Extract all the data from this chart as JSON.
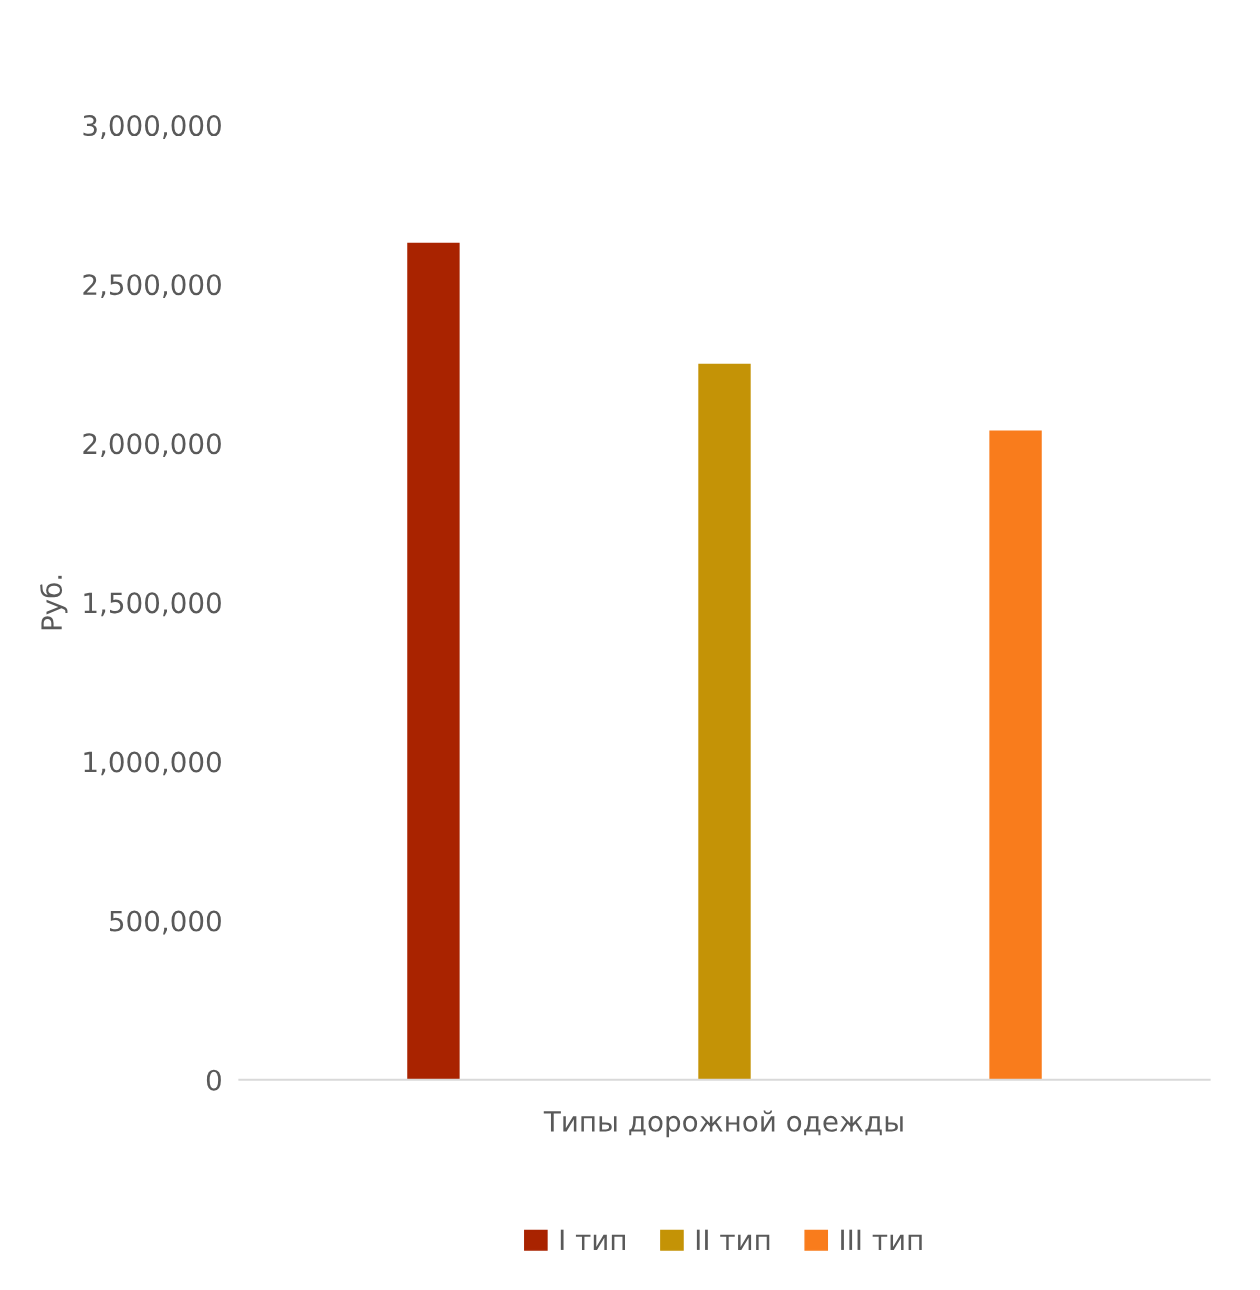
{
  "chart_data": {
    "type": "bar",
    "xlabel": "Типы дорожной одежды",
    "ylabel": "Руб.",
    "categories": [
      null
    ],
    "series": [
      {
        "name": "I тип",
        "color": "#a92300",
        "values": [
          2630000
        ]
      },
      {
        "name": "II тип",
        "color": "#c49306",
        "values": [
          2250000
        ]
      },
      {
        "name": "III тип",
        "color": "#f97c1c",
        "values": [
          2040000
        ]
      }
    ],
    "ylim": [
      0,
      3000000
    ],
    "yticks": [
      {
        "value": 0,
        "label": "0"
      },
      {
        "value": 500000,
        "label": "500,000"
      },
      {
        "value": 1000000,
        "label": "1,000,000"
      },
      {
        "value": 1500000,
        "label": "1,500,000"
      },
      {
        "value": 2000000,
        "label": "2,000,000"
      },
      {
        "value": 2500000,
        "label": "2,500,000"
      },
      {
        "value": 3000000,
        "label": "3,000,000"
      }
    ],
    "grid": false,
    "legend": "bottom"
  }
}
